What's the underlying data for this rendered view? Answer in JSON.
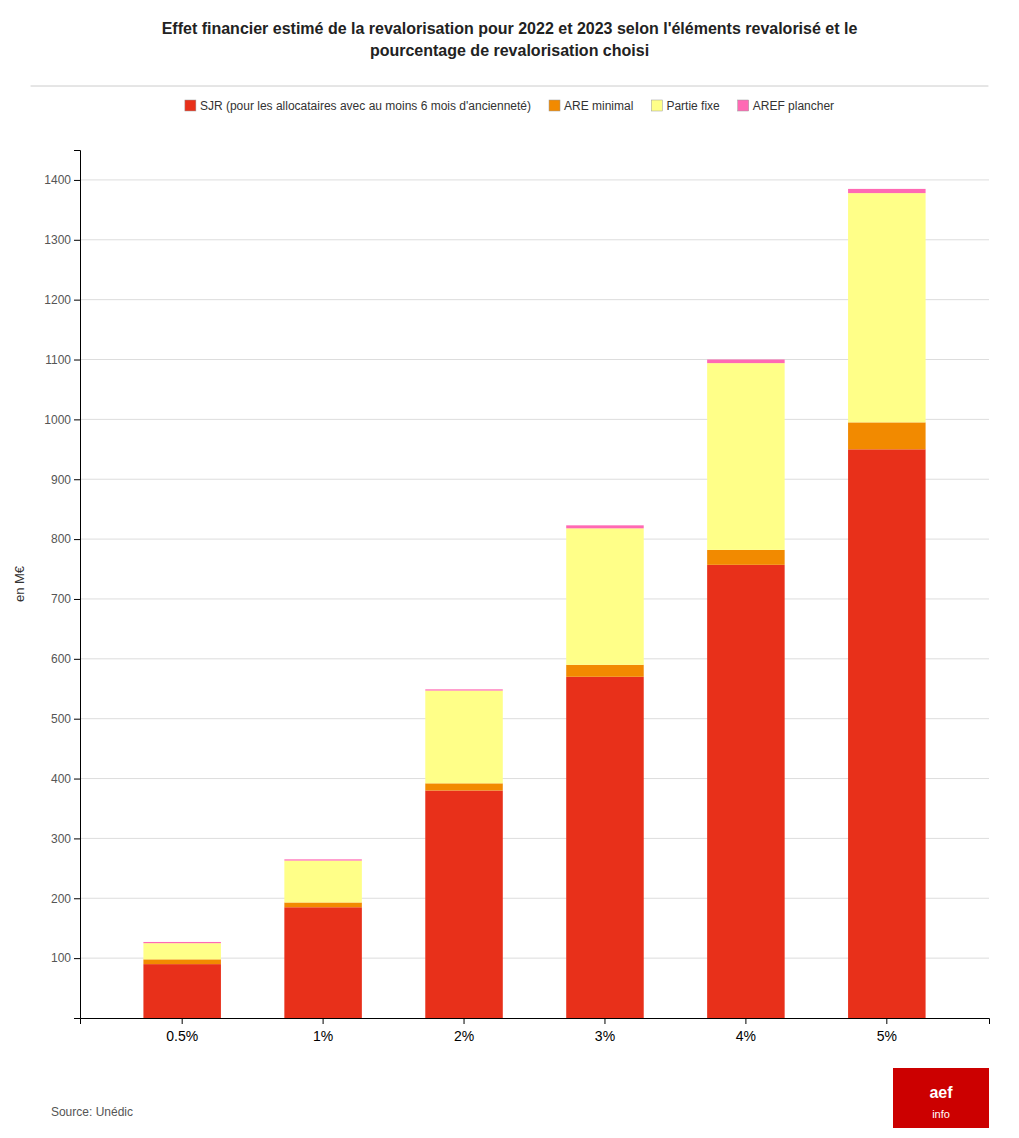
{
  "chart_data": {
    "type": "bar",
    "stacked": true,
    "title": "Effet financier estimé de la revalorisation pour 2022 et 2023 selon l'éléments revalorisé et le\npourcentage de revalorisation choisi",
    "categories": [
      "0.5%",
      "1%",
      "2%",
      "3%",
      "4%",
      "5%"
    ],
    "series": [
      {
        "name": "SJR (pour les allocataires avec au moins 6 mois d'ancienneté)",
        "color": "#E8301A",
        "values": [
          90,
          185,
          380,
          570,
          757,
          950
        ]
      },
      {
        "name": "ARE minimal",
        "color": "#F28A00",
        "values": [
          8,
          8,
          12,
          20,
          25,
          45
        ]
      },
      {
        "name": "Partie fixe",
        "color": "#FFFF88",
        "values": [
          27,
          70,
          155,
          228,
          312,
          383
        ]
      },
      {
        "name": "AREF plancher",
        "color": "#FF69B4",
        "values": [
          2,
          2,
          2,
          5,
          6,
          7
        ]
      }
    ],
    "ylabel": "en M€",
    "ylim": [
      0,
      1450
    ],
    "yticks": [
      100,
      200,
      300,
      400,
      500,
      600,
      700,
      800,
      900,
      1000,
      1100,
      1200,
      1300,
      1400
    ],
    "grid": true,
    "legend": "top",
    "source": "Source: Unédic",
    "annotations": [
      "aef",
      "info"
    ]
  }
}
